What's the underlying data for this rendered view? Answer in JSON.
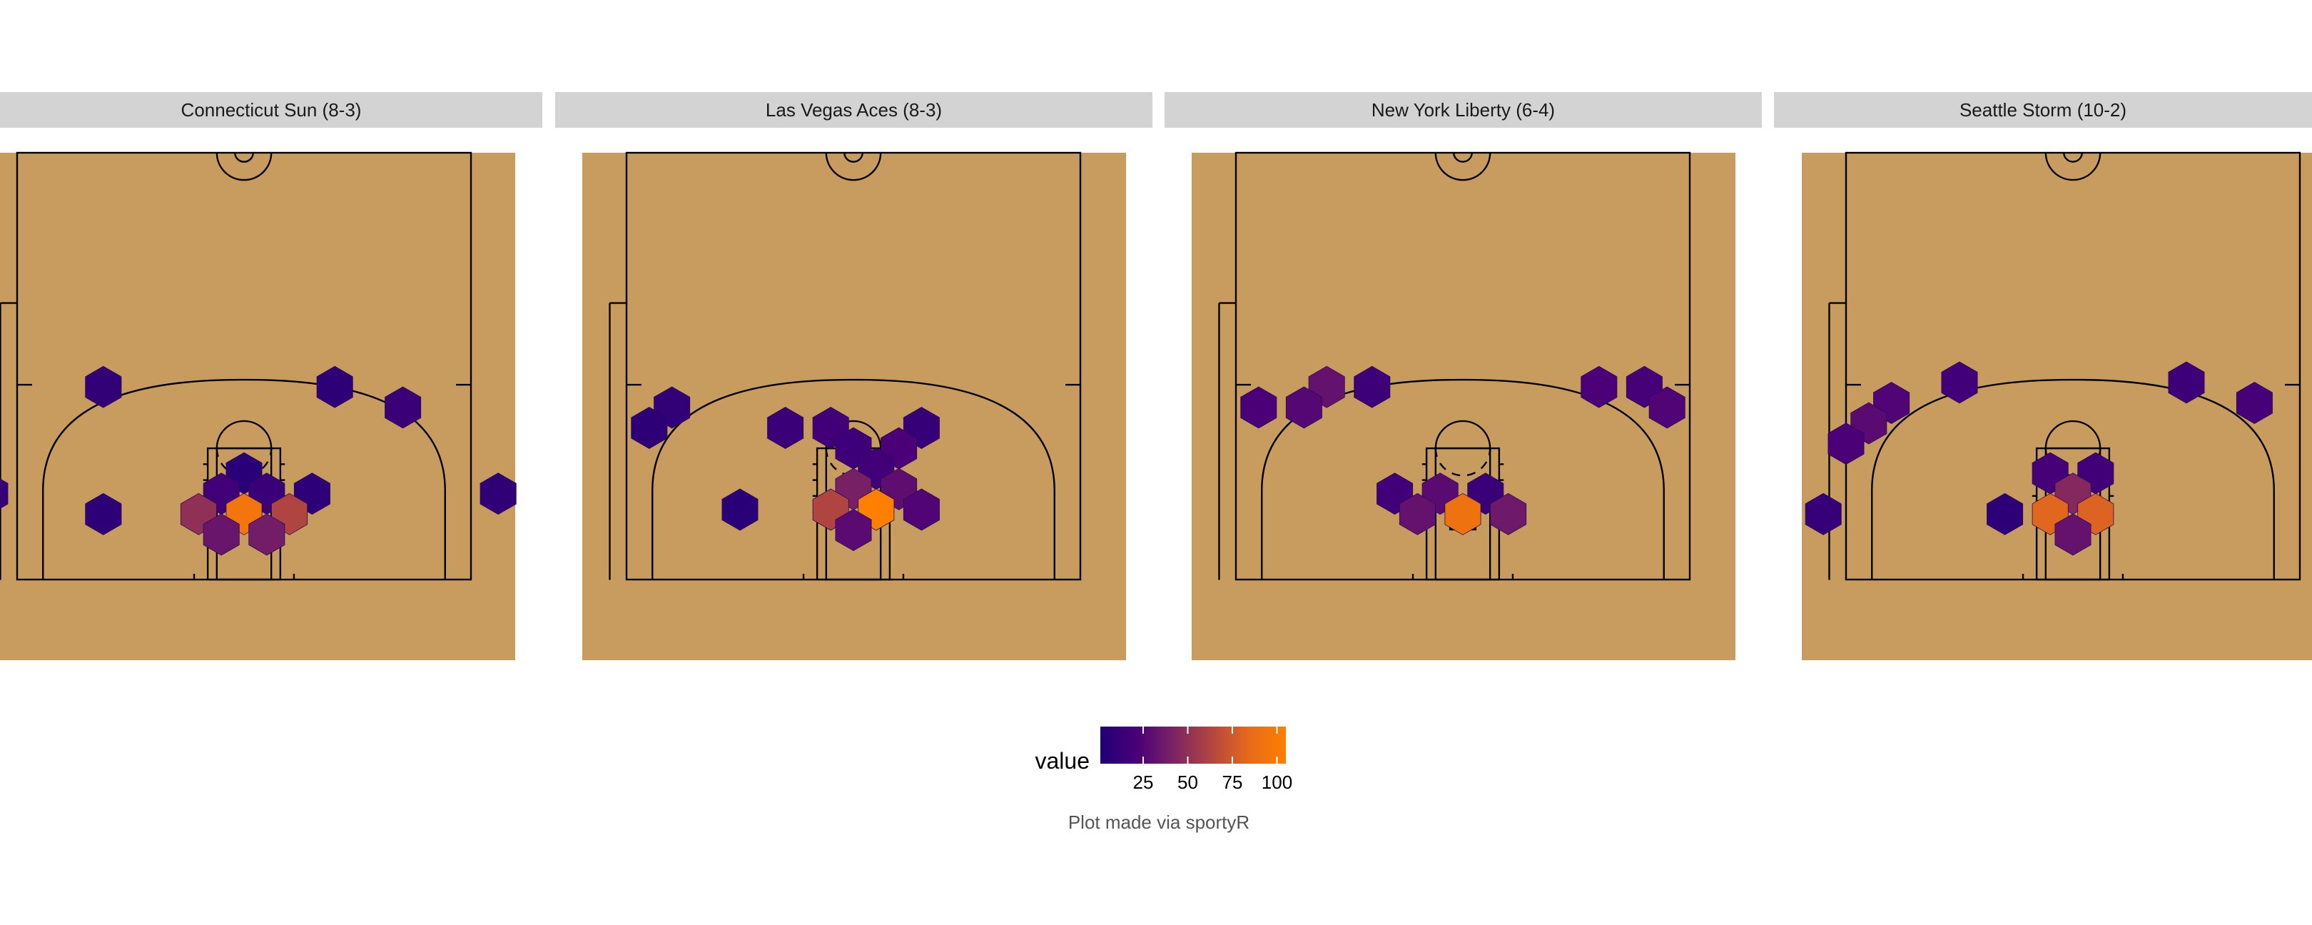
{
  "chart_data": {
    "type": "heatmap",
    "subtype": "hexbin shot chart (faceted by team)",
    "legend": {
      "title": "value",
      "ticks": [
        25,
        50,
        75,
        100
      ],
      "range": [
        1,
        105
      ],
      "placement": "bottom-center",
      "colors": [
        "#1f0077",
        "#4a0078",
        "#7e2463",
        "#b2463f",
        "#e66a1a",
        "#ff7f00"
      ]
    },
    "caption": "Plot made via sportyR",
    "court_colors": {
      "floor": "#c89c5e",
      "lines": "#000000",
      "strip": "#d3d3d3"
    },
    "panels": [
      {
        "title": "Connecticut Sun (8-3)",
        "hexes": [
          {
            "x": -31,
            "y": 16,
            "value": 10
          },
          {
            "x": 20,
            "y": 16,
            "value": 8
          },
          {
            "x": 35,
            "y": 11.5,
            "value": 14
          },
          {
            "x": -56,
            "y": -7.5,
            "value": 12
          },
          {
            "x": 56,
            "y": -7.5,
            "value": 9
          },
          {
            "x": -31,
            "y": -12,
            "value": 8
          },
          {
            "x": 0,
            "y": -3,
            "value": 6
          },
          {
            "x": -5,
            "y": -7.5,
            "value": 18
          },
          {
            "x": 5,
            "y": -7.5,
            "value": 14
          },
          {
            "x": 15,
            "y": -7.5,
            "value": 8
          },
          {
            "x": -10,
            "y": -12,
            "value": 50
          },
          {
            "x": 0,
            "y": -12,
            "value": 95
          },
          {
            "x": 10,
            "y": -12,
            "value": 62
          },
          {
            "x": -5,
            "y": -16.5,
            "value": 34
          },
          {
            "x": 5,
            "y": -16.5,
            "value": 38
          }
        ]
      },
      {
        "title": "Las Vegas Aces (8-3)",
        "hexes": [
          {
            "x": -40,
            "y": 11.5,
            "value": 10
          },
          {
            "x": -45,
            "y": 7,
            "value": 8
          },
          {
            "x": -15,
            "y": 7,
            "value": 14
          },
          {
            "x": -5,
            "y": 7,
            "value": 18
          },
          {
            "x": 15,
            "y": 7,
            "value": 12
          },
          {
            "x": 0,
            "y": 2.5,
            "value": 16
          },
          {
            "x": 10,
            "y": 2.5,
            "value": 22
          },
          {
            "x": 5,
            "y": -2,
            "value": 18
          },
          {
            "x": 0,
            "y": -6.5,
            "value": 40
          },
          {
            "x": 10,
            "y": -6.5,
            "value": 30
          },
          {
            "x": -25,
            "y": -11,
            "value": 6
          },
          {
            "x": -5,
            "y": -11,
            "value": 62
          },
          {
            "x": 5,
            "y": -11,
            "value": 105
          },
          {
            "x": 15,
            "y": -11,
            "value": 24
          },
          {
            "x": 0,
            "y": -15.5,
            "value": 28
          }
        ]
      },
      {
        "title": "New York Liberty (6-4)",
        "hexes": [
          {
            "x": -30,
            "y": 16,
            "value": 32
          },
          {
            "x": -20,
            "y": 16,
            "value": 16
          },
          {
            "x": 30,
            "y": 16,
            "value": 22
          },
          {
            "x": 40,
            "y": 16,
            "value": 20
          },
          {
            "x": -45,
            "y": 11.5,
            "value": 22
          },
          {
            "x": -35,
            "y": 11.5,
            "value": 26
          },
          {
            "x": 45,
            "y": 11.5,
            "value": 24
          },
          {
            "x": -15,
            "y": -7.5,
            "value": 18
          },
          {
            "x": -5,
            "y": -7.5,
            "value": 28
          },
          {
            "x": 5,
            "y": -7.5,
            "value": 14
          },
          {
            "x": -10,
            "y": -12,
            "value": 32
          },
          {
            "x": 0,
            "y": -12,
            "value": 92
          },
          {
            "x": 10,
            "y": -12,
            "value": 36
          }
        ]
      },
      {
        "title": "Seattle Storm (10-2)",
        "hexes": [
          {
            "x": -25,
            "y": 17,
            "value": 18
          },
          {
            "x": 25,
            "y": 17,
            "value": 16
          },
          {
            "x": -40,
            "y": 12.5,
            "value": 24
          },
          {
            "x": 40,
            "y": 12.5,
            "value": 20
          },
          {
            "x": -45,
            "y": 8,
            "value": 28
          },
          {
            "x": -50,
            "y": 3.5,
            "value": 22
          },
          {
            "x": -5,
            "y": -3,
            "value": 20
          },
          {
            "x": 5,
            "y": -3,
            "value": 18
          },
          {
            "x": 0,
            "y": -7.5,
            "value": 45
          },
          {
            "x": -55,
            "y": -12,
            "value": 12
          },
          {
            "x": -15,
            "y": -12,
            "value": 8
          },
          {
            "x": -5,
            "y": -12,
            "value": 82
          },
          {
            "x": 5,
            "y": -12,
            "value": 80
          },
          {
            "x": 0,
            "y": -16.5,
            "value": 32
          }
        ]
      }
    ]
  }
}
